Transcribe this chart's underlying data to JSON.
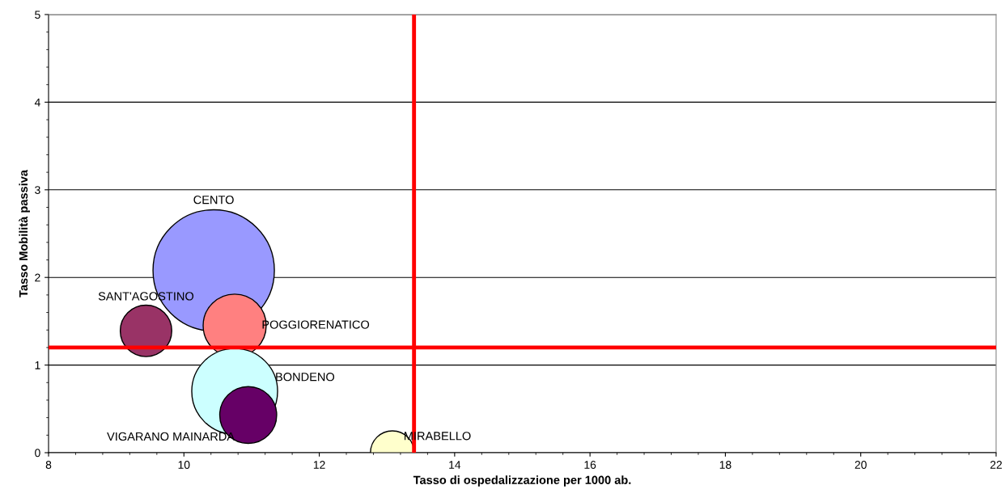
{
  "chart_data": {
    "type": "bubble",
    "xlabel": "Tasso di ospedalizzazione per 1000 ab.",
    "ylabel": "Tasso Mobilità passiva",
    "xlim": [
      8,
      22
    ],
    "xticks": [
      8,
      10,
      12,
      14,
      16,
      18,
      20,
      22
    ],
    "ylim": [
      0,
      5
    ],
    "yticks": [
      0,
      1,
      2,
      3,
      4,
      5
    ],
    "grid": "y",
    "legend": false,
    "series": [
      {
        "name": "CENTO",
        "color": "#9999ff",
        "x": [
          10.44
        ],
        "values": [
          2.08
        ],
        "sizes": [
          1
        ]
      },
      {
        "name": "SANT'AGOSTINO",
        "color": "#993366",
        "x": [
          9.44
        ],
        "values": [
          1.39
        ],
        "sizes": [
          0.18
        ]
      },
      {
        "name": "POGGIORENATICO",
        "color": "#ff8080",
        "x": [
          10.75
        ],
        "values": [
          1.45
        ],
        "sizes": [
          0.27
        ]
      },
      {
        "name": "BONDENO",
        "color": "#ccffff",
        "x": [
          10.75
        ],
        "values": [
          0.7
        ],
        "sizes": [
          0.5
        ]
      },
      {
        "name": "VIGARANO MAINARDA",
        "color": "#660066",
        "x": [
          10.95
        ],
        "values": [
          0.43
        ],
        "sizes": [
          0.22
        ]
      },
      {
        "name": "MIRABELLO",
        "color": "#ffffcc",
        "x": [
          13.08
        ],
        "values": [
          0
        ],
        "sizes": [
          0.13
        ]
      }
    ],
    "ref_lines": [
      {
        "axis": "x",
        "value": 13.4,
        "color": "#ff0000"
      },
      {
        "axis": "y",
        "value": 1.2,
        "color": "#ff0000"
      }
    ]
  }
}
